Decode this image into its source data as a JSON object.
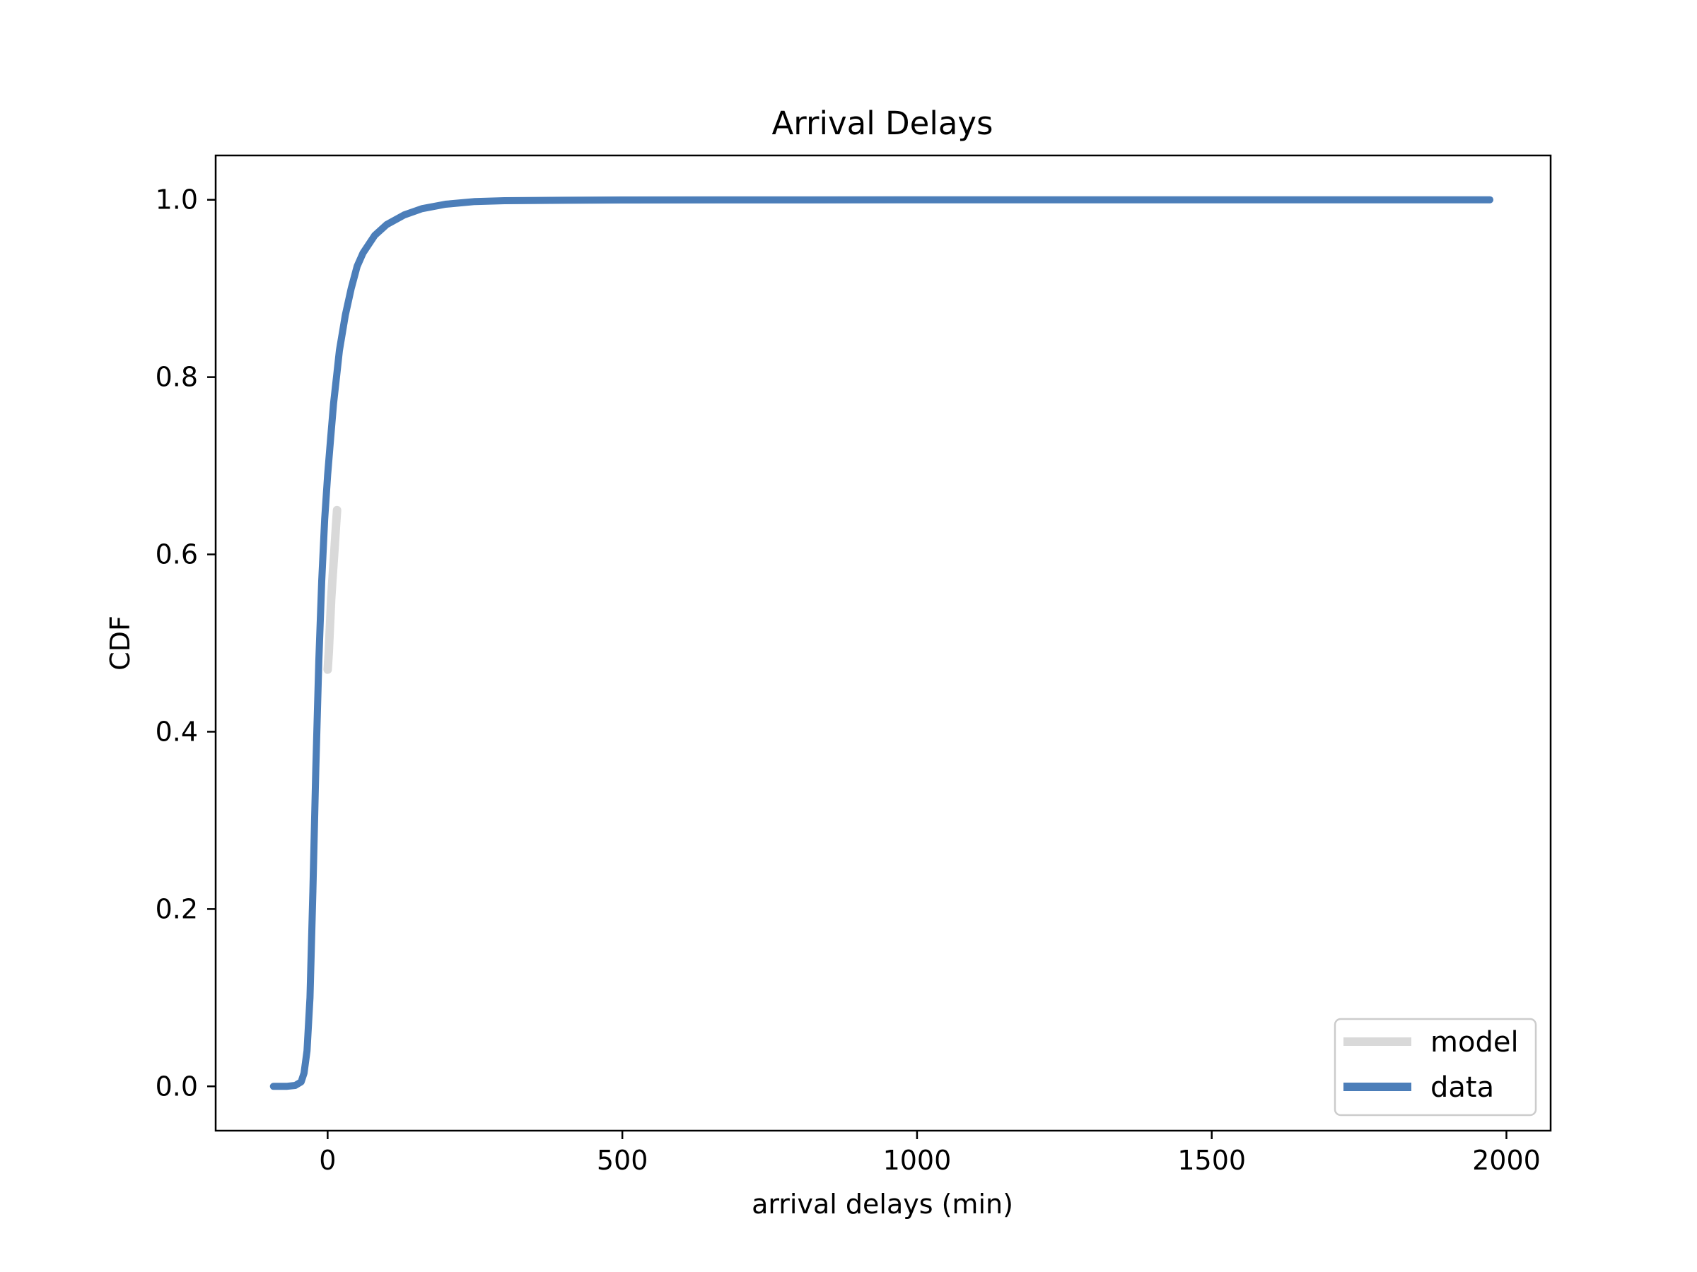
{
  "chart_data": {
    "type": "line",
    "title": "Arrival Delays",
    "xlabel": "arrival delays (min)",
    "ylabel": "CDF",
    "xlim": [
      -190,
      2075
    ],
    "ylim": [
      -0.05,
      1.05
    ],
    "xticks": [
      0,
      500,
      1000,
      1500,
      2000
    ],
    "yticks": [
      0.0,
      0.2,
      0.4,
      0.6,
      0.8,
      1.0
    ],
    "xtick_labels": [
      "0",
      "500",
      "1000",
      "1500",
      "2000"
    ],
    "ytick_labels": [
      "0.0",
      "0.2",
      "0.4",
      "0.6",
      "0.8",
      "1.0"
    ],
    "grid": false,
    "legend_position": "lower-right",
    "series": [
      {
        "name": "model",
        "color": "#d9d9d9",
        "x": [
          0,
          2,
          4,
          6,
          8,
          10,
          12,
          14,
          16
        ],
        "y": [
          0.47,
          0.49,
          0.52,
          0.55,
          0.57,
          0.59,
          0.61,
          0.63,
          0.65
        ]
      },
      {
        "name": "data",
        "color": "#4c7eb9",
        "x": [
          -92,
          -70,
          -55,
          -45,
          -40,
          -35,
          -30,
          -25,
          -20,
          -15,
          -10,
          -5,
          0,
          5,
          10,
          15,
          20,
          30,
          40,
          50,
          60,
          80,
          100,
          130,
          160,
          200,
          250,
          300,
          400,
          500,
          700,
          1000,
          1500,
          1972
        ],
        "y": [
          0.0,
          0.0,
          0.001,
          0.005,
          0.015,
          0.04,
          0.1,
          0.22,
          0.36,
          0.48,
          0.57,
          0.64,
          0.69,
          0.73,
          0.77,
          0.8,
          0.83,
          0.87,
          0.9,
          0.925,
          0.94,
          0.96,
          0.972,
          0.983,
          0.99,
          0.995,
          0.998,
          0.999,
          0.9995,
          0.9998,
          0.9999,
          1.0,
          1.0,
          1.0
        ]
      }
    ]
  }
}
